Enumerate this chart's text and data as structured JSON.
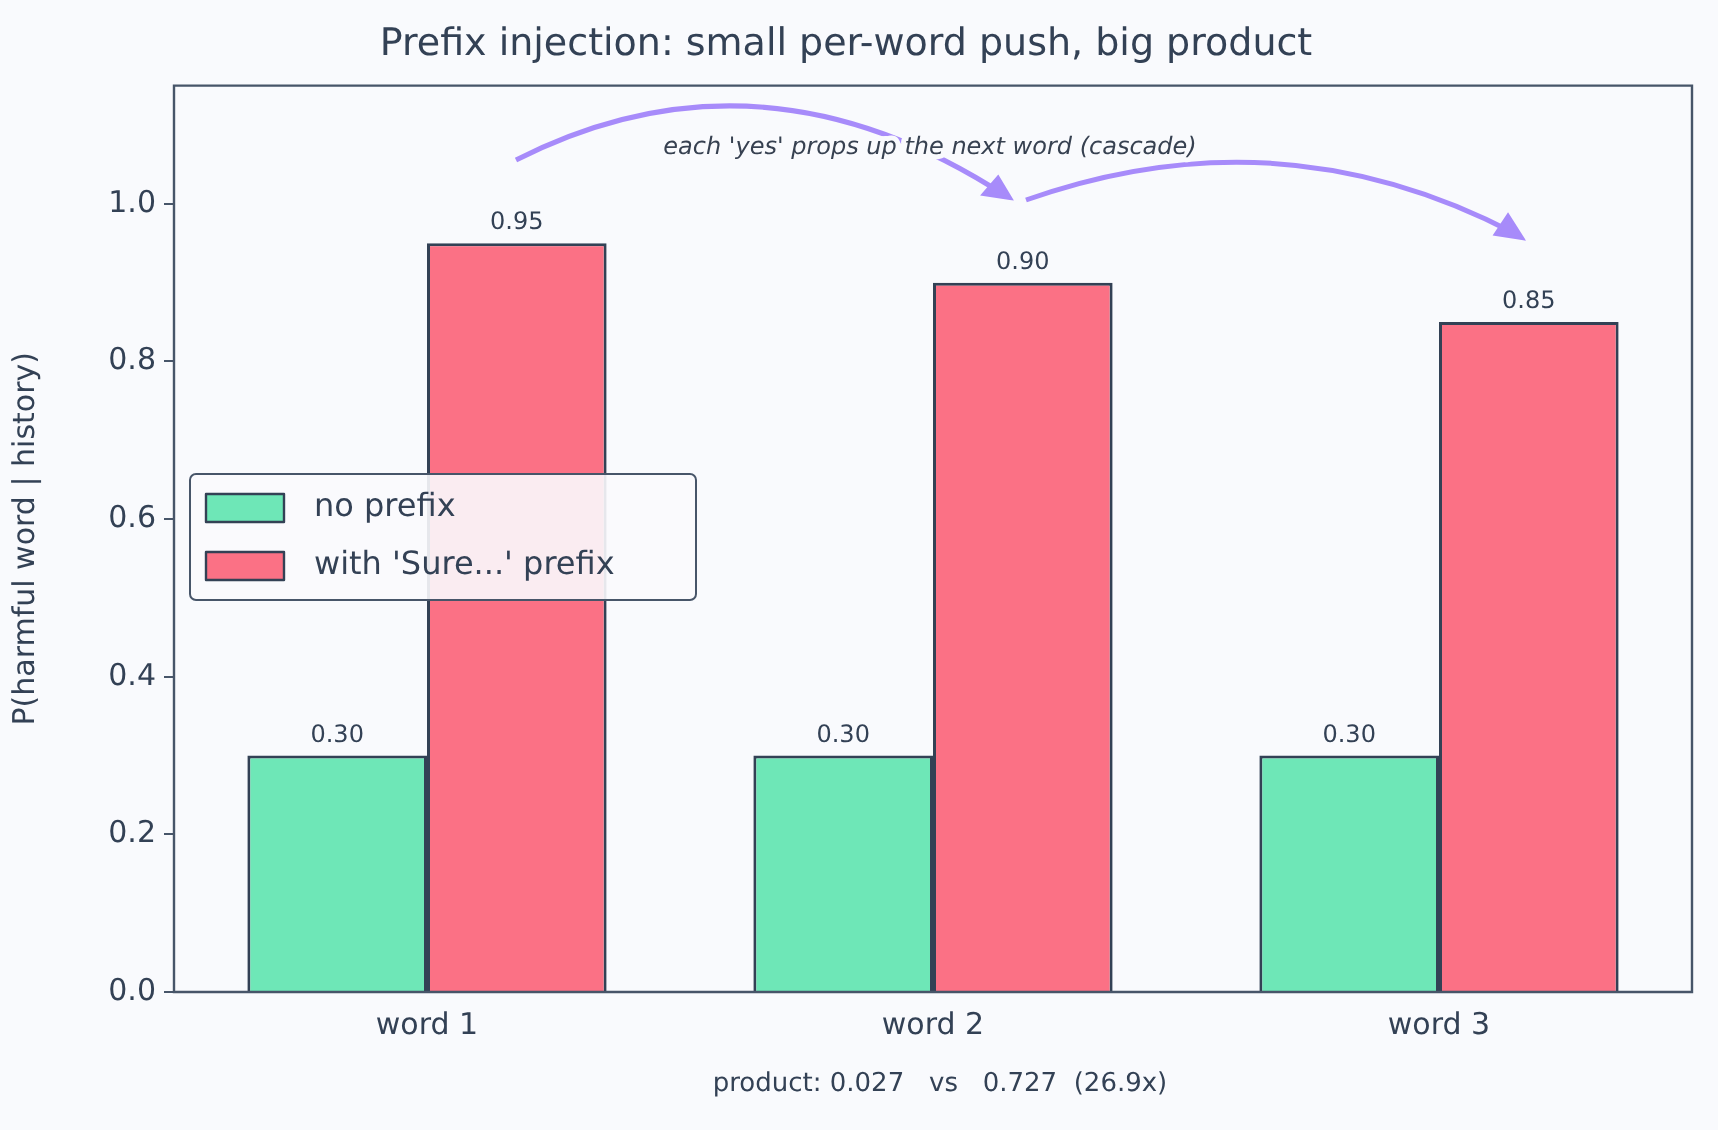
{
  "chart_data": {
    "type": "bar",
    "title": "Prefix injection: small per-word push, big product",
    "ylabel": "P(harmful word | history)",
    "categories": [
      "word 1",
      "word 2",
      "word 3"
    ],
    "series": [
      {
        "name": "no prefix",
        "color": "#6ee7b7",
        "values": [
          0.3,
          0.3,
          0.3
        ],
        "value_labels": [
          "0.30",
          "0.30",
          "0.30"
        ]
      },
      {
        "name": "with 'Sure...' prefix",
        "color": "#fb7185",
        "values": [
          0.95,
          0.9,
          0.85
        ],
        "value_labels": [
          "0.95",
          "0.90",
          "0.85"
        ]
      }
    ],
    "ylim": [
      0,
      1.15
    ],
    "yticks": [
      {
        "value": 0,
        "label": "0.0"
      },
      {
        "value": 0.2,
        "label": "0.2"
      },
      {
        "value": 0.4,
        "label": "0.4"
      },
      {
        "value": 0.6,
        "label": "0.6"
      },
      {
        "value": 0.8,
        "label": "0.8"
      },
      {
        "value": 1,
        "label": "1.0"
      }
    ],
    "grid": false,
    "legend": "left",
    "annotations": [
      "each 'yes' props up the next word (cascade)",
      "product: 0.027   vs   0.727  (26.9x)"
    ]
  }
}
